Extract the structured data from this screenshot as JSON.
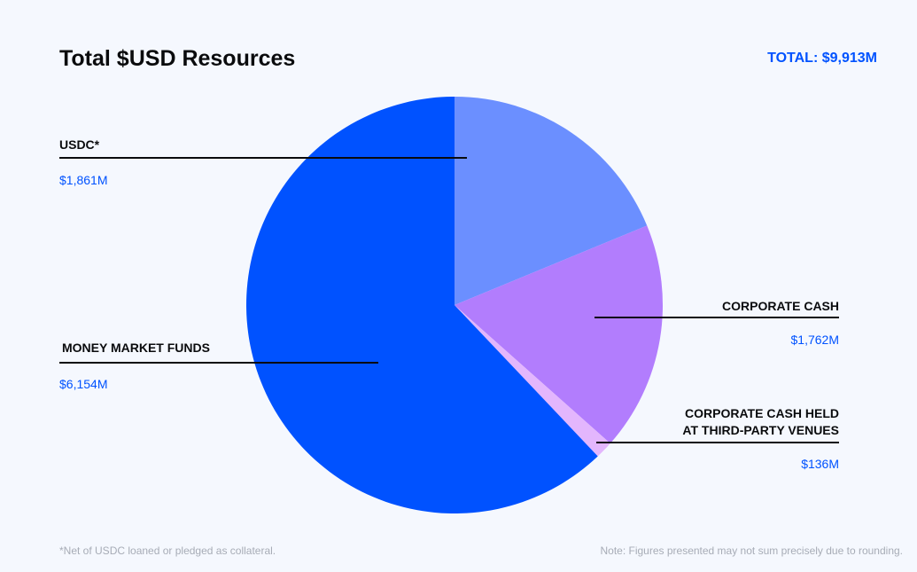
{
  "chart_data": {
    "type": "pie",
    "title": "Total $USD Resources",
    "total_label": "TOTAL: $9,913M",
    "slices": [
      {
        "label": "USDC*",
        "value": 1861,
        "value_label": "$1,861M",
        "color": "#6b8fff"
      },
      {
        "label": "CORPORATE CASH",
        "value": 1762,
        "value_label": "$1,762M",
        "color": "#b27dfd"
      },
      {
        "label": "CORPORATE CASH HELD AT THIRD-PARTY VENUES",
        "label_lines": [
          "CORPORATE CASH HELD",
          "AT THIRD-PARTY VENUES"
        ],
        "value": 136,
        "value_label": "$136M",
        "color": "#e3b6fd"
      },
      {
        "label": "MONEY MARKET FUNDS",
        "value": 6154,
        "value_label": "$6,154M",
        "color": "#0052ff"
      }
    ],
    "start": "top (12 o'clock)",
    "direction": "clockwise"
  },
  "footnotes": {
    "left": "*Net of USDC loaned or pledged as collateral.",
    "right": "Note: Figures presented may not sum precisely due to rounding."
  }
}
